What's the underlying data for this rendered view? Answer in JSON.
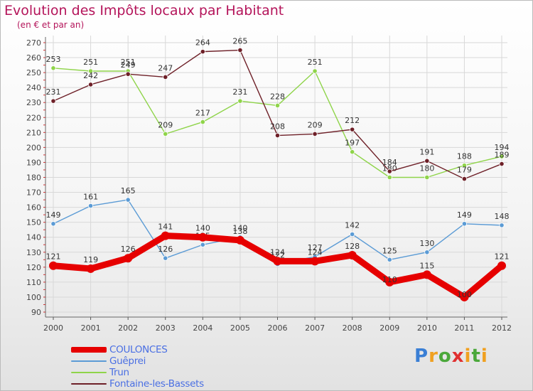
{
  "header": {
    "title": "Evolution des Impôts locaux par Habitant",
    "subtitle": "(en € et par an)"
  },
  "logo": {
    "text": "Proxiti"
  },
  "chart_data": {
    "type": "line",
    "title": "Evolution des Impôts locaux par Habitant",
    "subtitle": "(en € et par an)",
    "xlabel": "",
    "ylabel": "",
    "x": [
      2000,
      2001,
      2002,
      2003,
      2004,
      2005,
      2006,
      2007,
      2008,
      2009,
      2010,
      2011,
      2012
    ],
    "ylim": [
      90,
      270
    ],
    "yticks": [
      90,
      100,
      110,
      120,
      130,
      140,
      150,
      160,
      170,
      180,
      190,
      200,
      210,
      220,
      230,
      240,
      250,
      260,
      270
    ],
    "grid": true,
    "legend_position": "bottom-left",
    "series": [
      {
        "name": "COULONCES",
        "color": "#e60000",
        "values": [
          121,
          119,
          126,
          141,
          140,
          138,
          124,
          124,
          128,
          110,
          115,
          100,
          121
        ]
      },
      {
        "name": "Guêprei",
        "color": "#5b9bd5",
        "values": [
          149,
          161,
          165,
          126,
          135,
          140,
          122,
          127,
          142,
          125,
          130,
          149,
          148
        ]
      },
      {
        "name": "Trun",
        "color": "#8fd44a",
        "values": [
          253,
          251,
          251,
          209,
          217,
          231,
          228,
          251,
          197,
          180,
          180,
          188,
          194
        ]
      },
      {
        "name": "Fontaine-les-Bassets",
        "color": "#6e2028",
        "values": [
          231,
          242,
          249,
          247,
          264,
          265,
          208,
          209,
          212,
          184,
          191,
          179,
          189
        ]
      }
    ]
  }
}
